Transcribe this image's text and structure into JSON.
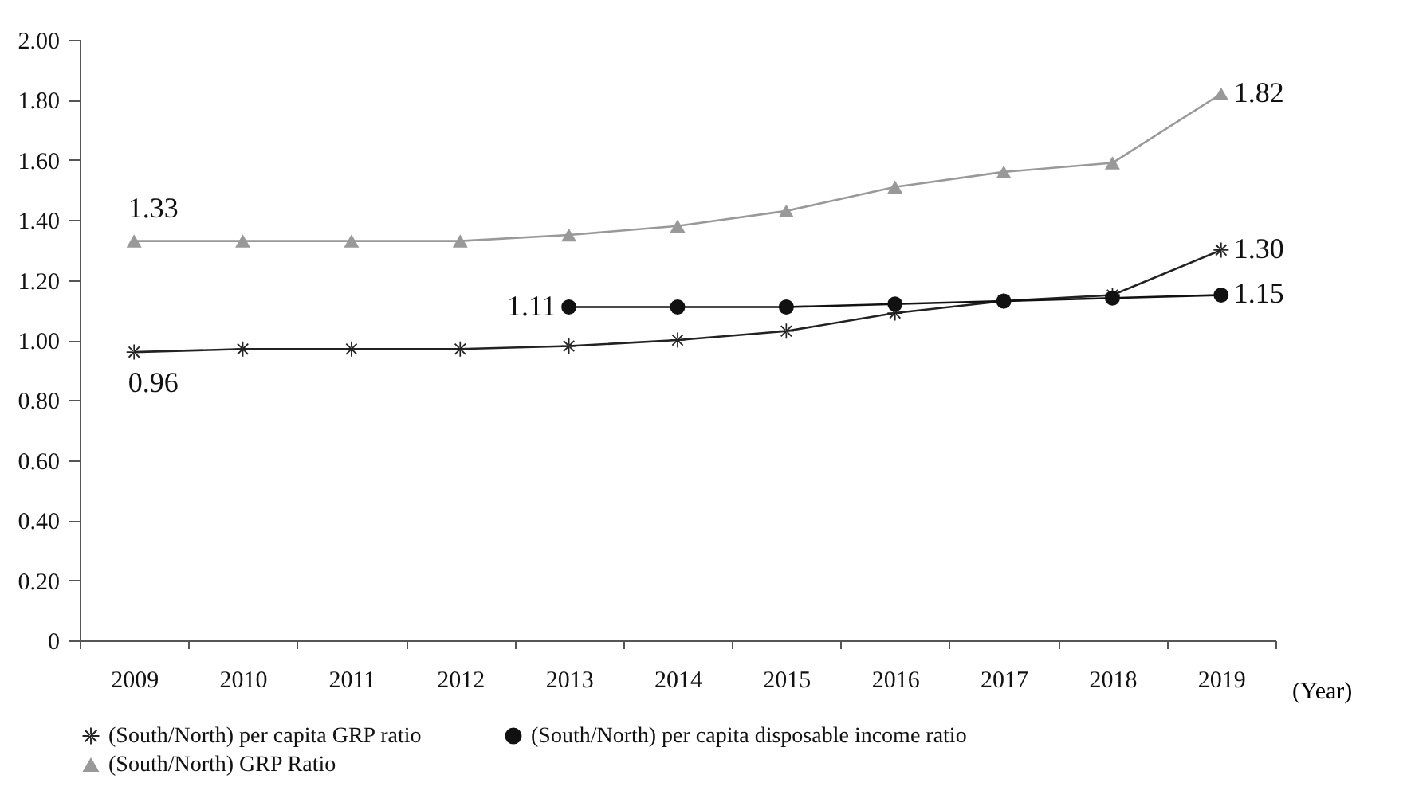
{
  "chart_data": {
    "type": "line",
    "xlabel": "(Year)",
    "categories": [
      "2009",
      "2010",
      "2011",
      "2012",
      "2013",
      "2014",
      "2015",
      "2016",
      "2017",
      "2018",
      "2019"
    ],
    "ylim": [
      0,
      2
    ],
    "yticks": [
      {
        "value": 0,
        "label": "0"
      },
      {
        "value": 0.2,
        "label": "0.20"
      },
      {
        "value": 0.4,
        "label": "0.40"
      },
      {
        "value": 0.6,
        "label": "0.60"
      },
      {
        "value": 0.8,
        "label": "0.80"
      },
      {
        "value": 1,
        "label": "1.00"
      },
      {
        "value": 1.2,
        "label": "1.20"
      },
      {
        "value": 1.4,
        "label": "1.40"
      },
      {
        "value": 1.6,
        "label": "1.60"
      },
      {
        "value": 1.8,
        "label": "1.80"
      },
      {
        "value": 2,
        "label": "2.00"
      }
    ],
    "grid": false,
    "legend": "bottom",
    "line_style": "solid",
    "marker": "circle",
    "series": [
      {
        "name": "(South/North) per capita GRP ratio",
        "color": "#222222",
        "marker": "cross",
        "values": [
          0.96,
          0.97,
          0.97,
          0.97,
          0.98,
          1.0,
          1.03,
          1.09,
          1.13,
          1.15,
          1.3
        ],
        "value_labels": [
          "0.96",
          null,
          null,
          null,
          null,
          null,
          null,
          null,
          null,
          null,
          "1.30"
        ]
      },
      {
        "name": "(South/North) per capita disposable income ratio",
        "color": "#111111",
        "marker": "circle",
        "values": [
          null,
          null,
          null,
          null,
          1.11,
          1.11,
          1.11,
          1.12,
          1.13,
          1.14,
          1.15
        ],
        "value_labels": [
          null,
          null,
          null,
          null,
          "1.11",
          null,
          null,
          null,
          null,
          null,
          "1.15"
        ]
      },
      {
        "name": "(South/North) GRP Ratio",
        "color": "#999999",
        "marker": "triangle",
        "values": [
          1.33,
          1.33,
          1.33,
          1.33,
          1.35,
          1.38,
          1.43,
          1.51,
          1.56,
          1.59,
          1.82
        ],
        "value_labels": [
          "1.33",
          null,
          null,
          null,
          null,
          null,
          null,
          null,
          null,
          null,
          "1.82"
        ]
      }
    ]
  }
}
